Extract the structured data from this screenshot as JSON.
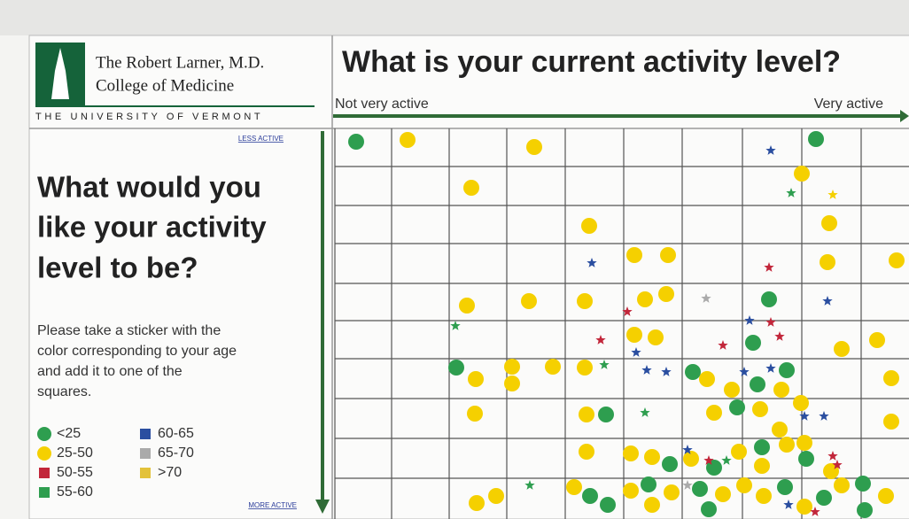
{
  "logo": {
    "line1": "The Robert Larner, M.D.",
    "line2": "College of Medicine",
    "line3": "THE UNIVERSITY OF VERMONT"
  },
  "header": {
    "title": "What is your current activity level?",
    "left_label": "Not very active",
    "right_label": "Very active"
  },
  "side": {
    "top_label": "LESS ACTIVE",
    "bottom_label": "MORE ACTIVE",
    "question": [
      "What would you",
      "like your activity",
      "level to be?"
    ],
    "instructions": [
      "Please take a sticker with the",
      "color corresponding to your age",
      "and add it to one of the",
      "squares."
    ]
  },
  "legend": [
    "<25",
    "25-50",
    "50-55",
    "55-60",
    "60-65",
    "65-70",
    ">70"
  ]
}
